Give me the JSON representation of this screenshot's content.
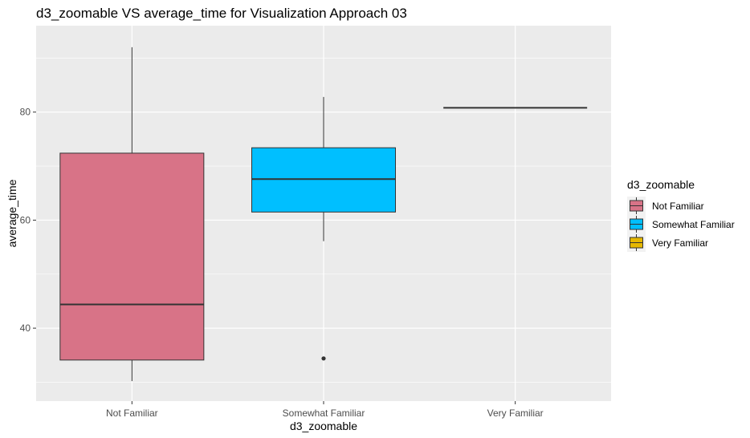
{
  "chart_data": {
    "type": "boxplot",
    "title": "d3_zoomable VS average_time for Visualization Approach 03",
    "xlabel": "d3_zoomable",
    "ylabel": "average_time",
    "categories": [
      "Not Familiar",
      "Somewhat Familiar",
      "Very Familiar"
    ],
    "ylim": [
      26.5,
      96
    ],
    "y_ticks": [
      40,
      60,
      80
    ],
    "y_tick_labels": [
      "40",
      "60",
      "80"
    ],
    "grid": true,
    "legend": {
      "title": "d3_zoomable",
      "position": "right",
      "entries": [
        "Not Familiar",
        "Somewhat Familiar",
        "Very Familiar"
      ]
    },
    "boxes": [
      {
        "category": "Not Familiar",
        "min": 30.2,
        "q1": 34.1,
        "median": 44.4,
        "q3": 72.4,
        "max": 92.0,
        "outliers": [],
        "color": "#d87387"
      },
      {
        "category": "Somewhat Familiar",
        "min": 56.1,
        "q1": 61.5,
        "median": 67.6,
        "q3": 73.4,
        "max": 82.8,
        "outliers": [
          34.4
        ],
        "color": "#00bfff"
      },
      {
        "category": "Very Familiar",
        "min": 80.8,
        "q1": 80.8,
        "median": 80.8,
        "q3": 80.8,
        "max": 80.8,
        "outliers": [],
        "color": "#e6b800"
      }
    ]
  }
}
